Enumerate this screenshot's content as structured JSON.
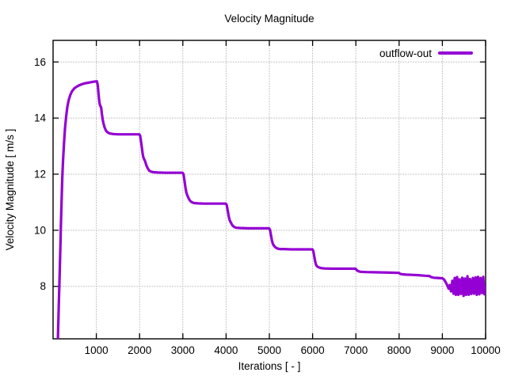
{
  "window": {
    "background": "#ffffff"
  },
  "chart_data": {
    "type": "line",
    "title": "Velocity Magnitude",
    "xlabel": "Iterations [ - ]",
    "ylabel": "Velocity Magnitude [ m/s ]",
    "xlim": [
      0,
      10000
    ],
    "ylim": [
      6.13,
      16.77
    ],
    "x_ticks": [
      1000,
      2000,
      3000,
      4000,
      5000,
      6000,
      7000,
      8000,
      9000,
      10000
    ],
    "y_ticks": [
      8,
      10,
      12,
      14,
      16
    ],
    "grid": true,
    "grid_color": "#bdbdbd",
    "axis_color": "#000000",
    "legend_position": "top-right-inside",
    "series": [
      {
        "name": "outflow-out",
        "color": "#9400d3",
        "points": [
          [
            112,
            6.13
          ],
          [
            118,
            6.5
          ],
          [
            126,
            7.0
          ],
          [
            136,
            7.55
          ],
          [
            147,
            8.1
          ],
          [
            158,
            8.75
          ],
          [
            170,
            9.5
          ],
          [
            183,
            10.3
          ],
          [
            197,
            11.1
          ],
          [
            213,
            11.85
          ],
          [
            231,
            12.5
          ],
          [
            252,
            13.1
          ],
          [
            276,
            13.65
          ],
          [
            302,
            14.05
          ],
          [
            330,
            14.4
          ],
          [
            362,
            14.65
          ],
          [
            398,
            14.82
          ],
          [
            440,
            14.96
          ],
          [
            490,
            15.06
          ],
          [
            545,
            15.12
          ],
          [
            605,
            15.17
          ],
          [
            670,
            15.21
          ],
          [
            740,
            15.24
          ],
          [
            810,
            15.26
          ],
          [
            880,
            15.28
          ],
          [
            950,
            15.3
          ],
          [
            1015,
            15.31
          ],
          [
            1035,
            15.15
          ],
          [
            1052,
            14.85
          ],
          [
            1068,
            14.6
          ],
          [
            1082,
            14.47
          ],
          [
            1098,
            14.42
          ],
          [
            1112,
            14.37
          ],
          [
            1128,
            14.15
          ],
          [
            1146,
            13.95
          ],
          [
            1166,
            13.8
          ],
          [
            1190,
            13.67
          ],
          [
            1220,
            13.56
          ],
          [
            1258,
            13.49
          ],
          [
            1310,
            13.45
          ],
          [
            1390,
            13.43
          ],
          [
            1500,
            13.42
          ],
          [
            1700,
            13.42
          ],
          [
            1900,
            13.42
          ],
          [
            1995,
            13.42
          ],
          [
            2015,
            13.36
          ],
          [
            2035,
            13.15
          ],
          [
            2055,
            12.92
          ],
          [
            2072,
            12.72
          ],
          [
            2088,
            12.6
          ],
          [
            2105,
            12.53
          ],
          [
            2122,
            12.48
          ],
          [
            2140,
            12.4
          ],
          [
            2162,
            12.3
          ],
          [
            2188,
            12.21
          ],
          [
            2220,
            12.13
          ],
          [
            2262,
            12.09
          ],
          [
            2320,
            12.07
          ],
          [
            2420,
            12.06
          ],
          [
            2600,
            12.05
          ],
          [
            2800,
            12.05
          ],
          [
            2995,
            12.05
          ],
          [
            3015,
            12.0
          ],
          [
            3038,
            11.77
          ],
          [
            3060,
            11.52
          ],
          [
            3080,
            11.35
          ],
          [
            3098,
            11.26
          ],
          [
            3118,
            11.2
          ],
          [
            3140,
            11.12
          ],
          [
            3168,
            11.05
          ],
          [
            3205,
            11.0
          ],
          [
            3260,
            10.97
          ],
          [
            3350,
            10.96
          ],
          [
            3500,
            10.95
          ],
          [
            3750,
            10.95
          ],
          [
            3995,
            10.95
          ],
          [
            4015,
            10.9
          ],
          [
            4038,
            10.7
          ],
          [
            4060,
            10.5
          ],
          [
            4080,
            10.37
          ],
          [
            4100,
            10.3
          ],
          [
            4122,
            10.24
          ],
          [
            4150,
            10.17
          ],
          [
            4185,
            10.12
          ],
          [
            4235,
            10.09
          ],
          [
            4320,
            10.08
          ],
          [
            4500,
            10.07
          ],
          [
            4750,
            10.07
          ],
          [
            4995,
            10.07
          ],
          [
            5015,
            10.02
          ],
          [
            5038,
            9.82
          ],
          [
            5060,
            9.63
          ],
          [
            5080,
            9.52
          ],
          [
            5100,
            9.46
          ],
          [
            5122,
            9.42
          ],
          [
            5150,
            9.38
          ],
          [
            5185,
            9.35
          ],
          [
            5240,
            9.33
          ],
          [
            5340,
            9.33
          ],
          [
            5500,
            9.32
          ],
          [
            5750,
            9.32
          ],
          [
            5995,
            9.32
          ],
          [
            6015,
            9.27
          ],
          [
            6038,
            9.07
          ],
          [
            6060,
            8.88
          ],
          [
            6080,
            8.77
          ],
          [
            6100,
            8.72
          ],
          [
            6125,
            8.69
          ],
          [
            6155,
            8.67
          ],
          [
            6200,
            8.65
          ],
          [
            6280,
            8.64
          ],
          [
            6450,
            8.63
          ],
          [
            6700,
            8.63
          ],
          [
            6995,
            8.63
          ],
          [
            7020,
            8.58
          ],
          [
            7055,
            8.54
          ],
          [
            7110,
            8.52
          ],
          [
            7250,
            8.51
          ],
          [
            7500,
            8.5
          ],
          [
            7800,
            8.49
          ],
          [
            7995,
            8.48
          ],
          [
            8020,
            8.45
          ],
          [
            8070,
            8.43
          ],
          [
            8160,
            8.42
          ],
          [
            8300,
            8.41
          ],
          [
            8450,
            8.4
          ],
          [
            8600,
            8.38
          ],
          [
            8700,
            8.37
          ],
          [
            8740,
            8.33
          ],
          [
            8800,
            8.31
          ],
          [
            8900,
            8.3
          ],
          [
            9000,
            8.29
          ],
          [
            9040,
            8.24
          ],
          [
            9080,
            8.14
          ],
          [
            9115,
            8.03
          ],
          [
            9145,
            7.92
          ],
          [
            9172,
            8.05
          ],
          [
            9200,
            7.82
          ],
          [
            9230,
            8.2
          ],
          [
            9258,
            7.74
          ],
          [
            9285,
            8.3
          ],
          [
            9312,
            7.7
          ],
          [
            9340,
            8.33
          ],
          [
            9370,
            7.7
          ],
          [
            9400,
            8.25
          ],
          [
            9430,
            7.73
          ],
          [
            9460,
            8.31
          ],
          [
            9490,
            7.66
          ],
          [
            9520,
            8.28
          ],
          [
            9550,
            7.7
          ],
          [
            9580,
            8.36
          ],
          [
            9610,
            7.7
          ],
          [
            9640,
            8.26
          ],
          [
            9672,
            7.73
          ],
          [
            9705,
            8.3
          ],
          [
            9735,
            7.74
          ],
          [
            9765,
            8.32
          ],
          [
            9795,
            7.7
          ],
          [
            9825,
            8.34
          ],
          [
            9855,
            7.72
          ],
          [
            9885,
            8.3
          ],
          [
            9915,
            7.76
          ],
          [
            9945,
            8.34
          ],
          [
            9972,
            7.72
          ],
          [
            9990,
            8.0
          ],
          [
            10000,
            7.88
          ]
        ]
      }
    ]
  }
}
